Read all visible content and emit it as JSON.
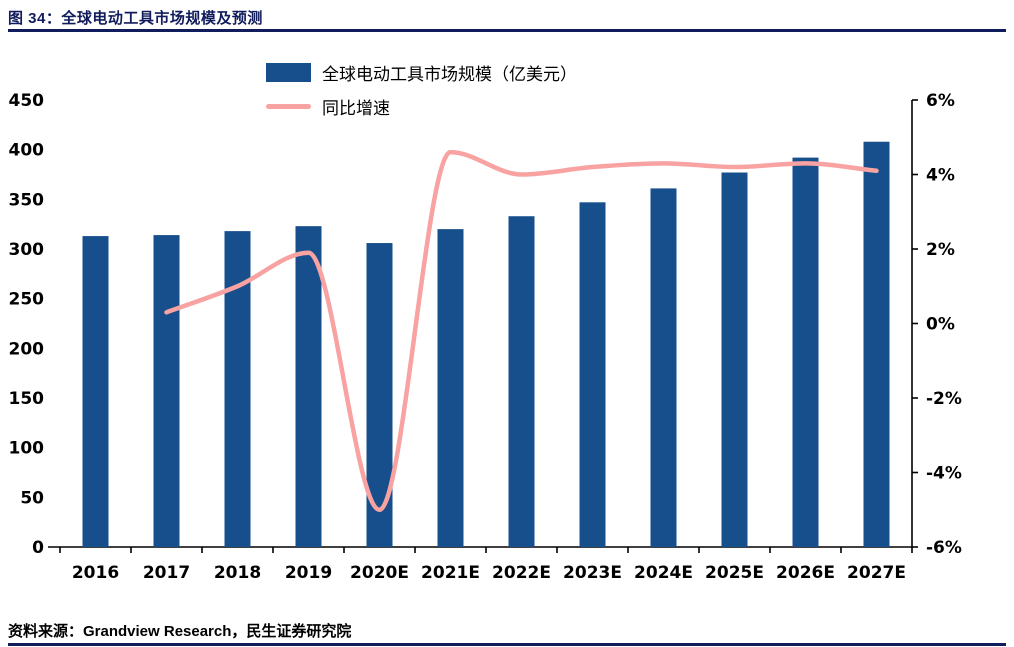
{
  "header": {
    "title": "图 34：全球电动工具市场规模及预测"
  },
  "legend": {
    "bar_label": "全球电动工具市场规模（亿美元）",
    "line_label": "同比增速"
  },
  "footer": {
    "source": "资料来源：Grandview Research，民生证券研究院"
  },
  "colors": {
    "bar": "#174F8C",
    "line": "#F8A2A2",
    "title": "#101C5B",
    "axis": "#000000"
  },
  "chart_data": {
    "type": "bar",
    "title": "全球电动工具市场规模及预测",
    "categories": [
      "2016",
      "2017",
      "2018",
      "2019",
      "2020E",
      "2021E",
      "2022E",
      "2023E",
      "2024E",
      "2025E",
      "2026E",
      "2027E"
    ],
    "series": [
      {
        "name": "全球电动工具市场规模（亿美元）",
        "type": "bar",
        "axis": "left",
        "values": [
          313,
          314,
          318,
          323,
          306,
          320,
          333,
          347,
          361,
          377,
          392,
          408
        ]
      },
      {
        "name": "同比增速",
        "type": "line",
        "axis": "right",
        "values": [
          null,
          0.3,
          1.0,
          1.9,
          -5.0,
          4.6,
          4.0,
          4.2,
          4.3,
          4.2,
          4.3,
          4.1
        ]
      }
    ],
    "left_axis": {
      "min": 0,
      "max": 450,
      "step": 50
    },
    "right_axis": {
      "min": -6,
      "max": 6,
      "step": 2,
      "suffix": "%"
    },
    "legend_position": "top",
    "grid": false
  }
}
